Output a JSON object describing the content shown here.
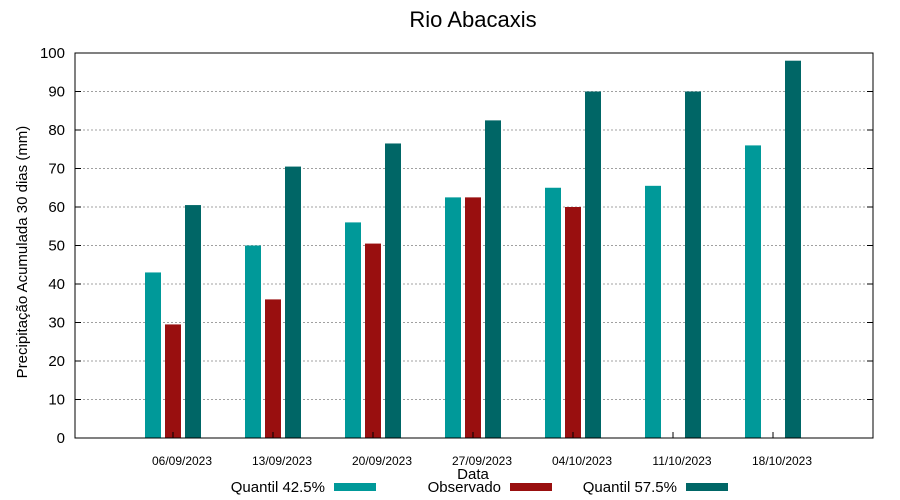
{
  "chart_data": {
    "type": "bar",
    "title": "Rio Abacaxis",
    "xlabel": "Data",
    "ylabel": "Precipitação Acumulada 30 dias (mm)",
    "ylim": [
      0,
      100
    ],
    "yticks": [
      0,
      10,
      20,
      30,
      40,
      50,
      60,
      70,
      80,
      90,
      100
    ],
    "grid": true,
    "legend_position": "bottom",
    "categories": [
      "06/09/2023",
      "13/09/2023",
      "20/09/2023",
      "27/09/2023",
      "04/10/2023",
      "11/10/2023",
      "18/10/2023"
    ],
    "series": [
      {
        "name": "Quantil 42.5%",
        "color": "#009999",
        "values": [
          43,
          50,
          56,
          62.5,
          65,
          65.5,
          76
        ]
      },
      {
        "name": "Observado",
        "color": "#990f0f",
        "values": [
          29.5,
          36,
          50.5,
          62.5,
          60,
          null,
          null
        ]
      },
      {
        "name": "Quantil 57.5%",
        "color": "#006666",
        "values": [
          60.5,
          70.5,
          76.5,
          82.5,
          90,
          90,
          98
        ]
      }
    ]
  }
}
